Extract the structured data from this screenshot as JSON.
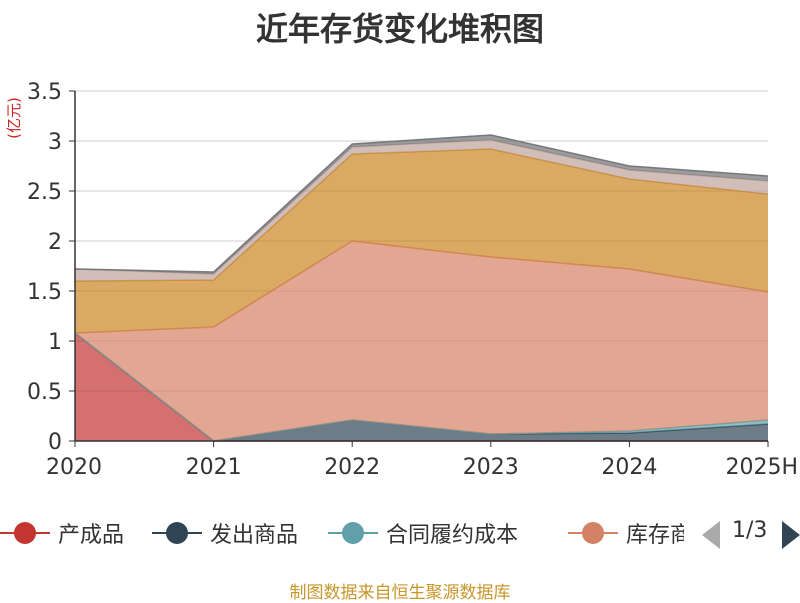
{
  "chart_data": {
    "type": "area",
    "stacked": true,
    "title": "近年存货变化堆积图",
    "unit_label": "(亿元)",
    "x": [
      "2020",
      "2021",
      "2022",
      "2023",
      "2024",
      "2025H"
    ],
    "ylim": [
      0,
      3.5
    ],
    "y_ticks": [
      "0",
      "0.5",
      "1",
      "1.5",
      "2",
      "2.5",
      "3",
      "3.5"
    ],
    "grid": true,
    "series": [
      {
        "name": "产成品",
        "color": "#c23531",
        "values": [
          1.08,
          0,
          0,
          0,
          0,
          0
        ]
      },
      {
        "name": "发出商品",
        "color": "#2f4554",
        "values": [
          0,
          0,
          0.21,
          0.07,
          0.08,
          0.17
        ]
      },
      {
        "name": "合同履约成本",
        "color": "#61a0a8",
        "values": [
          0,
          0,
          0,
          0,
          0.02,
          0.04
        ]
      },
      {
        "name": "库存商品",
        "color": "#d48265",
        "values": [
          0,
          1.14,
          1.79,
          1.77,
          1.62,
          1.28
        ]
      },
      {
        "color": "#ca8622",
        "values": [
          0.52,
          0.47,
          0.87,
          1.08,
          0.9,
          0.98
        ]
      },
      {
        "color": "#bda29a",
        "values": [
          0.12,
          0.06,
          0.07,
          0.09,
          0.09,
          0.13
        ]
      },
      {
        "color": "#6e7074",
        "values": [
          0,
          0.02,
          0.03,
          0.05,
          0.04,
          0.05
        ]
      }
    ]
  },
  "legend": {
    "page": "1/3"
  },
  "source": "制图数据来自恒生聚源数据库"
}
